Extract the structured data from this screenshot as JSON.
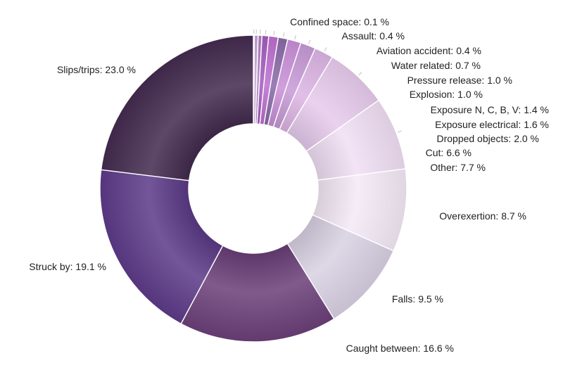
{
  "chart_data": {
    "type": "pie",
    "variant": "donut",
    "slices": [
      {
        "label": "Confined space: 0.1 %",
        "category": "Confined space",
        "value": 0.1,
        "color": "#f2e6f5"
      },
      {
        "label": "Assault: 0.4 %",
        "category": "Assault",
        "value": 0.4,
        "color": "#c9a3d6"
      },
      {
        "label": "Aviation accident: 0.4 %",
        "category": "Aviation accident",
        "value": 0.4,
        "color": "#b07fc4"
      },
      {
        "label": "Water related: 0.7 %",
        "category": "Water related",
        "value": 0.7,
        "color": "#a35cbf"
      },
      {
        "label": "Pressure release: 1.0 %",
        "category": "Pressure release",
        "value": 1.0,
        "color": "#bd6fcf"
      },
      {
        "label": "Explosion: 1.0 %",
        "category": "Explosion",
        "value": 1.0,
        "color": "#8a6aa8"
      },
      {
        "label": "Exposure N, C, B, V: 1.4 %",
        "category": "Exposure N, C, B, V",
        "value": 1.4,
        "color": "#c98fd8"
      },
      {
        "label": "Exposure electrical: 1.6 %",
        "category": "Exposure electrical",
        "value": 1.6,
        "color": "#c79ad6"
      },
      {
        "label": "Dropped objects: 2.0 %",
        "category": "Dropped objects",
        "value": 2.0,
        "color": "#dcb5e4"
      },
      {
        "label": "Cut: 6.6 %",
        "category": "Cut",
        "value": 6.6,
        "color": "#e6cbec"
      },
      {
        "label": "Other: 7.7 %",
        "category": "Other",
        "value": 7.7,
        "color": "#f0def3"
      },
      {
        "label": "Overexertion: 8.7 %",
        "category": "Overexertion",
        "value": 8.7,
        "color": "#f4e9f6"
      },
      {
        "label": "Falls: 9.5 %",
        "category": "Falls",
        "value": 9.5,
        "color": "#d8d0e2"
      },
      {
        "label": "Caught between: 16.6 %",
        "category": "Caught between",
        "value": 16.6,
        "color": "#6b3f78"
      },
      {
        "label": "Struck by: 19.1 %",
        "category": "Struck by",
        "value": 19.1,
        "color": "#5c3a88"
      },
      {
        "label": "Slips/trips: 23.0 %",
        "category": "Slips/trips",
        "value": 23.0,
        "color": "#432a4e"
      }
    ]
  }
}
